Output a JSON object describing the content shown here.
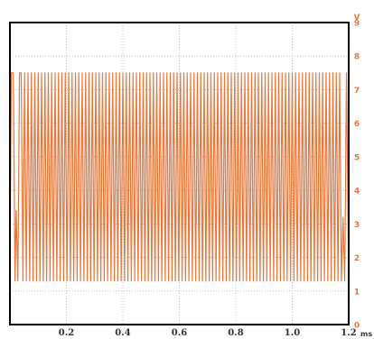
{
  "chart_data": {
    "type": "line",
    "xlabel": "",
    "ylabel": "",
    "x_unit": "ms",
    "y_unit": "V",
    "xlim": [
      0,
      1.2
    ],
    "ylim": [
      0,
      9
    ],
    "x_ticks": [
      "0.2",
      "0.4",
      "0.6",
      "0.8",
      "1.0",
      "1.2"
    ],
    "y_ticks": [
      "0",
      "1",
      "2",
      "3",
      "4",
      "5",
      "6",
      "7",
      "8",
      "9"
    ],
    "grid": true,
    "series": [
      {
        "color": "#e8763a",
        "high_level": 7.5,
        "low_level": 1.3,
        "x": [
          0.0,
          0.005,
          0.012,
          0.018,
          0.022,
          0.028,
          0.034,
          0.04,
          0.046,
          0.052,
          0.058,
          0.064,
          0.07,
          0.076,
          0.082,
          0.088,
          0.094,
          0.1,
          0.106,
          0.112,
          0.118,
          0.124,
          0.13,
          0.136,
          0.142,
          0.148,
          0.154,
          0.16,
          0.166,
          0.172,
          0.178,
          0.184,
          0.19,
          0.196,
          0.202,
          0.208,
          0.214,
          0.22,
          0.226,
          0.232,
          0.238,
          0.244,
          0.25,
          0.256,
          0.262,
          0.268,
          0.274,
          0.28,
          0.286,
          0.292,
          0.298,
          0.304,
          0.31,
          0.316,
          0.322,
          0.328,
          0.334,
          0.34,
          0.346,
          0.352,
          0.358,
          0.364,
          0.37,
          0.376,
          0.382,
          0.388,
          0.394,
          0.4,
          0.406,
          0.412,
          0.418,
          0.424,
          0.43,
          0.436,
          0.442,
          0.448,
          0.454,
          0.46,
          0.466,
          0.472,
          0.478,
          0.484,
          0.49,
          0.496,
          0.502,
          0.508,
          0.514,
          0.52,
          0.526,
          0.532,
          0.538,
          0.544,
          0.55,
          0.556,
          0.562,
          0.568,
          0.574,
          0.58,
          0.586,
          0.592,
          0.598,
          0.604,
          0.61,
          0.616,
          0.622,
          0.628,
          0.634,
          0.64,
          0.646,
          0.652,
          0.658,
          0.664,
          0.67,
          0.676,
          0.682,
          0.688,
          0.694,
          0.7,
          0.706,
          0.712,
          0.718,
          0.724,
          0.73,
          0.736,
          0.742,
          0.748,
          0.754,
          0.76,
          0.766,
          0.772,
          0.778,
          0.784,
          0.79,
          0.796,
          0.802,
          0.808,
          0.814,
          0.82,
          0.826,
          0.832,
          0.838,
          0.844,
          0.85,
          0.856,
          0.862,
          0.868,
          0.874,
          0.88,
          0.886,
          0.892,
          0.898,
          0.904,
          0.91,
          0.916,
          0.922,
          0.928,
          0.934,
          0.94,
          0.946,
          0.952,
          0.958,
          0.964,
          0.97,
          0.976,
          0.982,
          0.988,
          0.994,
          1.0,
          1.006,
          1.012,
          1.018,
          1.024,
          1.03,
          1.036,
          1.042,
          1.048,
          1.054,
          1.06,
          1.066,
          1.072,
          1.078,
          1.084,
          1.09,
          1.096,
          1.102,
          1.108,
          1.114,
          1.12,
          1.126,
          1.132,
          1.138,
          1.144,
          1.15,
          1.156,
          1.162,
          1.168,
          1.174,
          1.18,
          1.186,
          1.192,
          1.2
        ],
        "y": [
          1.3,
          7.5,
          7.5,
          1.3,
          3.4,
          1.3,
          7.5,
          7.5,
          1.3,
          7.5,
          1.3,
          7.5,
          1.3,
          7.5,
          1.3,
          7.5,
          1.3,
          7.5,
          1.3,
          7.5,
          1.3,
          7.5,
          1.3,
          7.5,
          1.3,
          7.5,
          1.3,
          7.5,
          1.3,
          7.5,
          1.3,
          7.5,
          1.3,
          7.5,
          1.3,
          7.5,
          1.3,
          7.5,
          1.3,
          7.5,
          1.3,
          7.5,
          1.3,
          7.5,
          1.3,
          7.5,
          1.3,
          7.5,
          1.3,
          7.5,
          1.3,
          7.5,
          1.3,
          7.5,
          1.3,
          7.5,
          1.3,
          7.5,
          1.3,
          7.5,
          1.3,
          7.5,
          1.3,
          7.5,
          1.3,
          7.5,
          1.3,
          7.5,
          1.3,
          7.5,
          1.3,
          7.5,
          1.3,
          7.5,
          1.3,
          7.5,
          1.3,
          7.5,
          1.3,
          7.5,
          1.3,
          7.5,
          1.3,
          7.5,
          1.3,
          7.5,
          1.3,
          7.5,
          1.3,
          7.5,
          1.3,
          7.5,
          1.3,
          7.5,
          1.3,
          7.5,
          1.3,
          7.5,
          1.3,
          7.5,
          1.3,
          7.5,
          1.3,
          7.5,
          1.3,
          7.5,
          1.3,
          7.5,
          1.3,
          7.5,
          1.3,
          7.5,
          1.3,
          7.5,
          1.3,
          7.5,
          1.3,
          7.5,
          1.3,
          7.5,
          1.3,
          7.5,
          1.3,
          7.5,
          1.3,
          7.5,
          1.3,
          7.5,
          1.3,
          7.5,
          1.3,
          7.5,
          1.3,
          7.5,
          1.3,
          7.5,
          1.3,
          7.5,
          1.3,
          7.5,
          1.3,
          7.5,
          1.3,
          7.5,
          1.3,
          7.5,
          1.3,
          7.5,
          1.3,
          7.5,
          1.3,
          7.5,
          1.3,
          7.5,
          1.3,
          7.5,
          1.3,
          7.5,
          1.3,
          7.5,
          1.3,
          7.5,
          1.3,
          7.5,
          1.3,
          7.5,
          1.3,
          7.5,
          1.3,
          7.5,
          1.3,
          7.5,
          1.3,
          7.5,
          1.3,
          7.5,
          1.3,
          7.5,
          1.3,
          7.5,
          1.3,
          7.5,
          1.3,
          7.5,
          1.3,
          7.5,
          1.3,
          7.5,
          1.3,
          7.5,
          1.3,
          7.5,
          1.3,
          7.5,
          1.3,
          7.5,
          1.3,
          3.2,
          1.3,
          7.5,
          1.3
        ]
      }
    ]
  },
  "colors": {
    "trace": "#e8763a",
    "y_axis_labels": "#e8763a",
    "grid": "#c4c4c4",
    "frame": "#000000"
  }
}
